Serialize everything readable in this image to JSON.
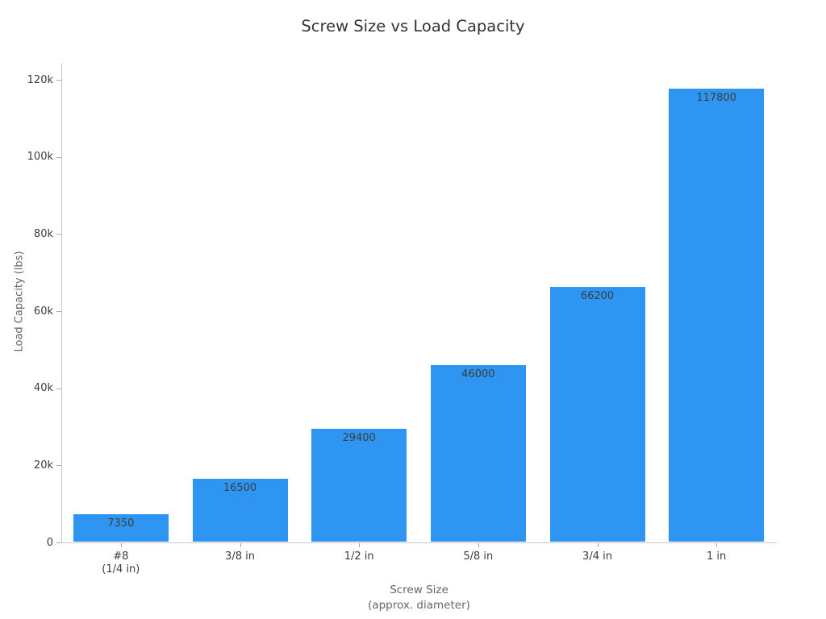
{
  "chart_data": {
    "type": "bar",
    "title": "Screw Size vs Load Capacity",
    "xlabel": "Screw Size\n(approx. diameter)",
    "ylabel": "Load Capacity (lbs)",
    "categories": [
      "#8\n(1/4 in)",
      "3/8 in",
      "1/2 in",
      "5/8 in",
      "3/4 in",
      "1 in"
    ],
    "values": [
      7350,
      16500,
      29400,
      46000,
      66200,
      117800
    ],
    "bar_labels": [
      "7350",
      "16500",
      "29400",
      "46000",
      "66200",
      "117800"
    ],
    "ylim": [
      0,
      120000
    ],
    "yticks": [
      {
        "value": 0,
        "label": "0"
      },
      {
        "value": 20000,
        "label": "20k"
      },
      {
        "value": 40000,
        "label": "40k"
      },
      {
        "value": 60000,
        "label": "60k"
      },
      {
        "value": 80000,
        "label": "80k"
      },
      {
        "value": 100000,
        "label": "100k"
      },
      {
        "value": 120000,
        "label": "120k"
      }
    ],
    "grid": false,
    "legend": null,
    "colors": {
      "bar": "#2e96f2",
      "axis_line": "#c9c9c9",
      "tick_mark": "#ababab",
      "tick_label": "#3c3c3c",
      "bar_label": "#3c3c3c",
      "axis_title": "#666666",
      "title": "#333333",
      "background": "#ffffff"
    }
  }
}
